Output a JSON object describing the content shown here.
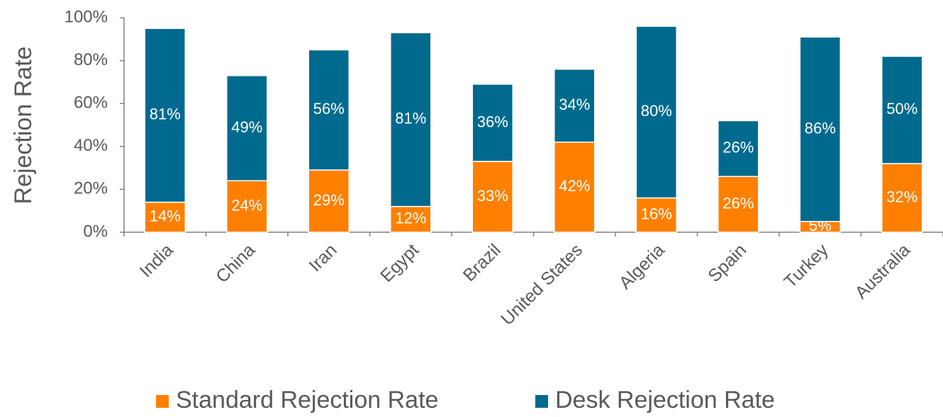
{
  "chart_data": {
    "type": "bar",
    "stacked": true,
    "y_label": "Rejection Rate",
    "categories": [
      "India",
      "China",
      "Iran",
      "Egypt",
      "Brazil",
      "United States",
      "Algeria",
      "Spain",
      "Turkey",
      "Australia"
    ],
    "series": [
      {
        "name": "Standard Rejection Rate",
        "color": "#ff8000",
        "values": [
          14,
          24,
          29,
          12,
          33,
          42,
          16,
          26,
          5,
          32
        ],
        "value_labels": [
          "14%",
          "24%",
          "29%",
          "12%",
          "33%",
          "42%",
          "16%",
          "26%",
          "5%",
          "32%"
        ]
      },
      {
        "name": "Desk Rejection Rate",
        "color": "#006a8e",
        "values": [
          81,
          49,
          56,
          81,
          36,
          34,
          80,
          26,
          86,
          50
        ],
        "value_labels": [
          "81%",
          "49%",
          "56%",
          "81%",
          "36%",
          "34%",
          "80%",
          "26%",
          "86%",
          "50%"
        ]
      }
    ],
    "ylim": [
      0,
      100
    ],
    "yticks": [
      {
        "value": 0,
        "label": "0%"
      },
      {
        "value": 20,
        "label": "20%"
      },
      {
        "value": 40,
        "label": "40%"
      },
      {
        "value": 60,
        "label": "60%"
      },
      {
        "value": 80,
        "label": "80%"
      },
      {
        "value": 100,
        "label": "100%"
      }
    ],
    "legend": "bottom"
  }
}
